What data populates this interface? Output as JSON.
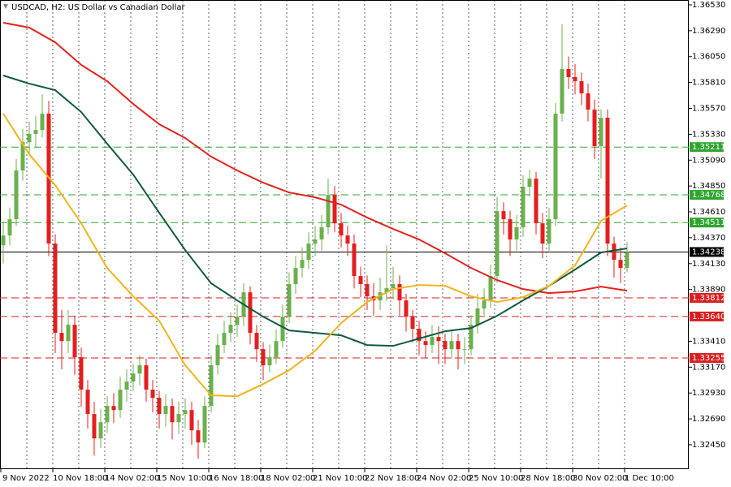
{
  "chart_data": {
    "type": "candlestick",
    "title": "USDCAD, H2:  US Dollar vs Canadian Dollar",
    "up_color": "#6ab04c",
    "down_color": "#e41e1e",
    "grid": "x",
    "categories": [
      "9 Nov 2022",
      null,
      null,
      null,
      null,
      null,
      null,
      null,
      "10 Nov 18:00",
      null,
      null,
      null,
      null,
      null,
      null,
      null,
      "14 Nov 02:00",
      null,
      null,
      null,
      null,
      null,
      null,
      null,
      "15 Nov 10:00",
      null,
      null,
      null,
      null,
      null,
      null,
      null,
      "16 Nov 18:00",
      null,
      null,
      null,
      null,
      null,
      null,
      null,
      "18 Nov 02:00",
      null,
      null,
      null,
      null,
      null,
      null,
      null,
      "21 Nov 10:00",
      null,
      null,
      null,
      null,
      null,
      null,
      null,
      "22 Nov 18:00",
      null,
      null,
      null,
      null,
      null,
      null,
      null,
      "24 Nov 02:00",
      null,
      null,
      null,
      null,
      null,
      null,
      null,
      "25 Nov 10:00",
      null,
      null,
      null,
      null,
      null,
      null,
      null,
      "28 Nov 18:00",
      null,
      null,
      null,
      null,
      null,
      null,
      null,
      "30 Nov 02:00",
      null,
      null,
      null,
      null,
      null,
      null,
      null,
      "1 Dec 10:00"
    ],
    "open": [
      1.343,
      1.34391,
      1.34542,
      1.34994,
      1.35257,
      1.35333,
      1.3537,
      1.35521,
      1.34316,
      1.33488,
      1.33412,
      1.33563,
      1.33262,
      1.32961,
      1.32735,
      1.32509,
      1.32659,
      1.3281,
      1.32772,
      1.32961,
      1.33036,
      1.33111,
      1.33187,
      1.32961,
      1.32885,
      1.32735,
      1.3281,
      1.32659,
      1.32735,
      1.32772,
      1.32584,
      1.32471,
      1.3281,
      1.33187,
      1.33375,
      1.33488,
      1.33563,
      1.33638,
      1.33864,
      1.33488,
      1.33337,
      1.33187,
      1.33262,
      1.33412,
      1.33638,
      1.3394,
      1.3409,
      1.34165,
      1.34316,
      1.34354,
      1.34467,
      1.34768,
      1.34504,
      1.34391,
      1.34316,
      1.34015,
      1.3394,
      1.33827,
      1.33789,
      1.33864,
      1.33902,
      1.3394,
      1.33789,
      1.33638,
      1.33525,
      1.33412,
      1.33375,
      1.3345,
      1.33412,
      1.33337,
      1.33412,
      1.33337,
      1.33337,
      1.33563,
      1.33714,
      1.33789,
      1.34015,
      1.34617,
      1.34542,
      1.34354,
      1.34467,
      1.34843,
      1.34918,
      1.34504,
      1.34316,
      1.34542,
      1.35521,
      1.35935,
      1.3586,
      1.35822,
      1.35709,
      1.35558,
      1.3522,
      1.35483,
      1.34316,
      1.34165,
      1.3409
    ],
    "high": [
      1.3452,
      1.3465,
      1.351,
      1.3538,
      1.3545,
      1.355,
      1.357,
      1.3564,
      1.344,
      1.337,
      1.337,
      1.3365,
      1.3335,
      1.3305,
      1.3285,
      1.3278,
      1.329,
      1.3293,
      1.3308,
      1.3315,
      1.332,
      1.3328,
      1.3325,
      1.3305,
      1.3295,
      1.3292,
      1.3288,
      1.3285,
      1.3288,
      1.3285,
      1.3268,
      1.329,
      1.3328,
      1.3348,
      1.336,
      1.3368,
      1.3375,
      1.3395,
      1.3392,
      1.3356,
      1.334,
      1.3338,
      1.3352,
      1.3375,
      1.3405,
      1.342,
      1.3428,
      1.3442,
      1.3448,
      1.3458,
      1.34918,
      1.3485,
      1.346,
      1.3448,
      1.344,
      1.341,
      1.3402,
      1.3395,
      1.34,
      1.343,
      1.341,
      1.3402,
      1.3385,
      1.337,
      1.336,
      1.335,
      1.3356,
      1.3355,
      1.3348,
      1.3352,
      1.3348,
      1.3345,
      1.3365,
      1.3385,
      1.339,
      1.3412,
      1.3475,
      1.347,
      1.3462,
      1.3458,
      1.3495,
      1.35,
      1.3498,
      1.346,
      1.3465,
      1.3562,
      1.3635,
      1.3605,
      1.3598,
      1.359,
      1.358,
      1.3565,
      1.3556,
      1.3556,
      1.3438,
      1.3428,
      1.3433
    ],
    "low": [
      1.3413,
      1.343,
      1.3448,
      1.349,
      1.3515,
      1.352,
      1.353,
      1.342,
      1.333,
      1.3315,
      1.333,
      1.331,
      1.328,
      1.326,
      1.3235,
      1.3242,
      1.3256,
      1.3265,
      1.327,
      1.3285,
      1.3295,
      1.33,
      1.3285,
      1.3275,
      1.326,
      1.3262,
      1.325,
      1.3255,
      1.326,
      1.3245,
      1.3232,
      1.3242,
      1.3275,
      1.331,
      1.333,
      1.334,
      1.3345,
      1.3355,
      1.3338,
      1.3322,
      1.3305,
      1.3312,
      1.332,
      1.3335,
      1.3358,
      1.3385,
      1.34,
      1.3408,
      1.342,
      1.3425,
      1.344,
      1.3442,
      1.3428,
      1.342,
      1.339,
      1.3382,
      1.337,
      1.3365,
      1.337,
      1.3378,
      1.338,
      1.3365,
      1.335,
      1.334,
      1.3328,
      1.3325,
      1.333,
      1.332,
      1.332,
      1.3325,
      1.3315,
      1.332,
      1.3328,
      1.3348,
      1.3365,
      1.3372,
      1.3395,
      1.344,
      1.342,
      1.3425,
      1.3438,
      1.3475,
      1.344,
      1.3418,
      1.3425,
      1.3448,
      1.3545,
      1.3575,
      1.357,
      1.356,
      1.3545,
      1.351,
      1.34918,
      1.342,
      1.34,
      1.3395,
      1.3405
    ],
    "close": [
      1.34391,
      1.34542,
      1.34994,
      1.35257,
      1.35333,
      1.3537,
      1.35521,
      1.34316,
      1.33488,
      1.33412,
      1.33563,
      1.33262,
      1.32961,
      1.32735,
      1.32509,
      1.32659,
      1.3281,
      1.32772,
      1.32961,
      1.33036,
      1.33111,
      1.33187,
      1.32961,
      1.32885,
      1.32735,
      1.3281,
      1.32659,
      1.32735,
      1.32772,
      1.32584,
      1.32471,
      1.3281,
      1.33187,
      1.33375,
      1.33488,
      1.33563,
      1.33638,
      1.33864,
      1.33488,
      1.33337,
      1.33187,
      1.33262,
      1.33412,
      1.33638,
      1.3394,
      1.3409,
      1.34165,
      1.34316,
      1.34354,
      1.34467,
      1.34768,
      1.34504,
      1.34391,
      1.34316,
      1.34015,
      1.3394,
      1.33827,
      1.33789,
      1.33864,
      1.33902,
      1.3394,
      1.33789,
      1.33638,
      1.33525,
      1.33412,
      1.33375,
      1.3345,
      1.33412,
      1.33337,
      1.33412,
      1.33337,
      1.33337,
      1.33563,
      1.33714,
      1.33789,
      1.34015,
      1.34617,
      1.34542,
      1.34354,
      1.34467,
      1.34843,
      1.34918,
      1.34504,
      1.34316,
      1.34542,
      1.35521,
      1.35935,
      1.3586,
      1.35822,
      1.35709,
      1.35558,
      1.3522,
      1.35483,
      1.34316,
      1.34165,
      1.3409,
      1.34238
    ],
    "series": [
      {
        "color": "#e3231c",
        "x": [
          0,
          4,
          8,
          12,
          16,
          20,
          24,
          28,
          32,
          36,
          40,
          44,
          48,
          52,
          56,
          60,
          64,
          68,
          72,
          76,
          80,
          84,
          88,
          92,
          96
        ],
        "values": [
          1.36364,
          1.36319,
          1.36183,
          1.35973,
          1.35822,
          1.35611,
          1.35423,
          1.35295,
          1.35122,
          1.34994,
          1.34881,
          1.3479,
          1.34745,
          1.34677,
          1.34557,
          1.34452,
          1.34354,
          1.34226,
          1.3409,
          1.33977,
          1.33894,
          1.33857,
          1.33872,
          1.33917,
          1.33879
        ]
      },
      {
        "color": "#0f5a3e",
        "x": [
          0,
          4,
          8,
          12,
          16,
          20,
          24,
          28,
          32,
          36,
          40,
          44,
          48,
          52,
          56,
          60,
          64,
          68,
          72,
          76,
          80,
          84,
          88,
          92,
          96
        ],
        "values": [
          1.35875,
          1.35799,
          1.35739,
          1.35536,
          1.35242,
          1.34956,
          1.34602,
          1.34256,
          1.33947,
          1.33789,
          1.33638,
          1.3351,
          1.33488,
          1.33465,
          1.33375,
          1.33367,
          1.33435,
          1.33503,
          1.33533,
          1.33646,
          1.33789,
          1.33924,
          1.34075,
          1.34233,
          1.34271
        ]
      },
      {
        "color": "#f0b41c",
        "x": [
          0,
          4,
          8,
          12,
          16,
          20,
          24,
          28,
          32,
          36,
          40,
          44,
          48,
          52,
          56,
          60,
          64,
          68,
          72,
          76,
          80,
          84,
          88,
          92,
          96
        ],
        "values": [
          1.35521,
          1.35144,
          1.34858,
          1.34504,
          1.3409,
          1.33827,
          1.33601,
          1.33187,
          1.32908,
          1.329,
          1.33013,
          1.33141,
          1.33322,
          1.33578,
          1.33774,
          1.33894,
          1.33932,
          1.33924,
          1.33827,
          1.33774,
          1.33819,
          1.33924,
          1.34113,
          1.34527,
          1.3467
        ]
      }
    ],
    "levels": [
      {
        "price": 1.35211,
        "color": "#2fa52f",
        "dashed": true
      },
      {
        "price": 1.34768,
        "color": "#2fa52f",
        "dashed": true
      },
      {
        "price": 1.34511,
        "color": "#2fa52f",
        "dashed": true
      },
      {
        "price": 1.34238,
        "color": "#000000",
        "dashed": false
      },
      {
        "price": 1.33812,
        "color": "#d81e1e",
        "dashed": true
      },
      {
        "price": {
          "value": 1.3364,
          "label": "1.33640"
        },
        "color": "#d81e1e",
        "dashed": true
      },
      {
        "price": 1.33255,
        "color": "#d81e1e",
        "dashed": true
      }
    ],
    "ylim": [
      1.32224,
      1.36575
    ],
    "yticks": [
      {
        "value": 1.3245,
        "label": "1.32450"
      },
      {
        "value": 1.3269,
        "label": "1.32690"
      },
      {
        "value": 1.3293,
        "label": "1.32930"
      },
      {
        "value": 1.3317,
        "label": "1.33170"
      },
      {
        "value": 1.3341,
        "label": "1.33410"
      },
      {
        "value": 1.3389,
        "label": "1.33890"
      },
      {
        "value": 1.3413,
        "label": "1.34130"
      },
      {
        "value": 1.3437,
        "label": "1.34370"
      },
      {
        "value": 1.3461,
        "label": "1.34610"
      },
      {
        "value": 1.3485,
        "label": "1.34850"
      },
      {
        "value": 1.3509,
        "label": "1.35090"
      },
      {
        "value": 1.3533,
        "label": "1.35330"
      },
      {
        "value": 1.3557,
        "label": "1.35570"
      },
      {
        "value": 1.3581,
        "label": "1.35810"
      },
      {
        "value": 1.3605,
        "label": "1.36050"
      },
      {
        "value": 1.3629,
        "label": "1.36290"
      },
      {
        "value": 1.3653,
        "label": "1.36530"
      }
    ]
  }
}
